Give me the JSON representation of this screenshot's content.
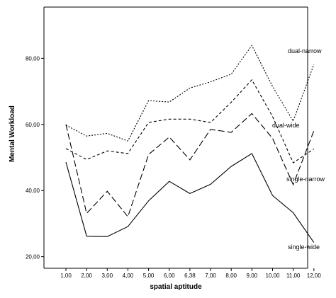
{
  "chart_data": {
    "type": "line",
    "xlabel": "spatial aptitude",
    "ylabel": "Mental Workload",
    "categories": [
      "1,00",
      "2,00",
      "3,00",
      "4,00",
      "5,00",
      "6,00",
      "6,38",
      "7,00",
      "8,00",
      "9,00",
      "10,00",
      "11,00",
      "12,00"
    ],
    "y_ticks": [
      "20,00",
      "40,00",
      "60,00",
      "80,00"
    ],
    "y_tick_values": [
      20,
      40,
      60,
      80
    ],
    "ylim": [
      16.5,
      95.5
    ],
    "grid": false,
    "legend": "inline labels at right end of lines",
    "series": [
      {
        "name": "dual-narrow",
        "style": "dotted",
        "values": [
          59.8,
          56.5,
          57.3,
          55.0,
          67.2,
          66.8,
          71.0,
          72.9,
          75.2,
          83.9,
          71.5,
          61.0,
          78.2
        ]
      },
      {
        "name": "dual-wide",
        "style": "short-dash",
        "values": [
          52.7,
          49.4,
          52.0,
          51.2,
          60.6,
          61.6,
          61.6,
          60.6,
          66.7,
          73.5,
          62.4,
          48.4,
          52.6
        ]
      },
      {
        "name": "single-narrow",
        "style": "long-dash",
        "values": [
          60.0,
          33.1,
          39.8,
          32.1,
          50.9,
          56.2,
          49.3,
          58.5,
          57.6,
          63.3,
          55.8,
          41.8,
          58.1
        ]
      },
      {
        "name": "single-wide",
        "style": "solid",
        "values": [
          48.6,
          26.2,
          26.1,
          29.1,
          36.9,
          42.8,
          39.1,
          41.9,
          47.3,
          51.2,
          38.5,
          33.3,
          24.3
        ]
      }
    ]
  }
}
